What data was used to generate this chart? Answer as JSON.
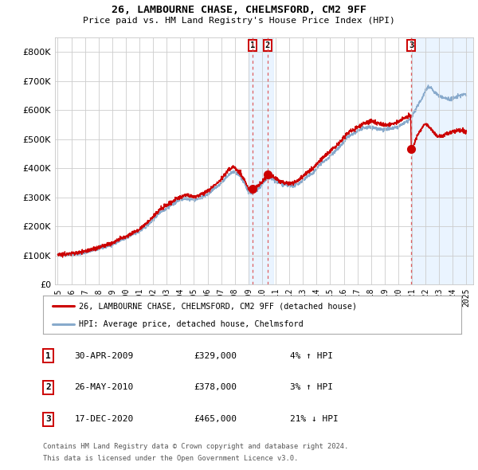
{
  "title1": "26, LAMBOURNE CHASE, CHELMSFORD, CM2 9FF",
  "title2": "Price paid vs. HM Land Registry's House Price Index (HPI)",
  "ylim": [
    0,
    850000
  ],
  "yticks": [
    0,
    100000,
    200000,
    300000,
    400000,
    500000,
    600000,
    700000,
    800000
  ],
  "ytick_labels": [
    "£0",
    "£100K",
    "£200K",
    "£300K",
    "£400K",
    "£500K",
    "£600K",
    "£700K",
    "£800K"
  ],
  "x_start_year": 1995,
  "x_end_year": 2025,
  "red_line_color": "#cc0000",
  "blue_line_color": "#88aacc",
  "grid_color": "#cccccc",
  "background_color": "#ffffff",
  "sale1_date": 2009.33,
  "sale1_price": 329000,
  "sale2_date": 2010.4,
  "sale2_price": 378000,
  "sale3_date": 2020.96,
  "sale3_price": 465000,
  "legend_red_label": "26, LAMBOURNE CHASE, CHELMSFORD, CM2 9FF (detached house)",
  "legend_blue_label": "HPI: Average price, detached house, Chelmsford",
  "table_rows": [
    {
      "num": "1",
      "date": "30-APR-2009",
      "price": "£329,000",
      "hpi": "4% ↑ HPI"
    },
    {
      "num": "2",
      "date": "26-MAY-2010",
      "price": "£378,000",
      "hpi": "3% ↑ HPI"
    },
    {
      "num": "3",
      "date": "17-DEC-2020",
      "price": "£465,000",
      "hpi": "21% ↓ HPI"
    }
  ],
  "footnote1": "Contains HM Land Registry data © Crown copyright and database right 2024.",
  "footnote2": "This data is licensed under the Open Government Licence v3.0.",
  "shade_color": "#ddeeff",
  "dashed_line_color": "#dd4444",
  "hpi_key_points": [
    [
      1995.0,
      102000
    ],
    [
      1995.5,
      101000
    ],
    [
      1996.0,
      104000
    ],
    [
      1996.5,
      105000
    ],
    [
      1997.0,
      110000
    ],
    [
      1997.5,
      116000
    ],
    [
      1998.0,
      122000
    ],
    [
      1998.5,
      130000
    ],
    [
      1999.0,
      138000
    ],
    [
      1999.5,
      148000
    ],
    [
      2000.0,
      158000
    ],
    [
      2000.5,
      172000
    ],
    [
      2001.0,
      183000
    ],
    [
      2001.5,
      200000
    ],
    [
      2002.0,
      222000
    ],
    [
      2002.5,
      248000
    ],
    [
      2003.0,
      262000
    ],
    [
      2003.5,
      278000
    ],
    [
      2004.0,
      292000
    ],
    [
      2004.5,
      296000
    ],
    [
      2005.0,
      292000
    ],
    [
      2005.5,
      298000
    ],
    [
      2006.0,
      310000
    ],
    [
      2006.5,
      330000
    ],
    [
      2007.0,
      348000
    ],
    [
      2007.5,
      375000
    ],
    [
      2007.9,
      388000
    ],
    [
      2008.3,
      375000
    ],
    [
      2008.7,
      348000
    ],
    [
      2009.0,
      318000
    ],
    [
      2009.3,
      315000
    ],
    [
      2009.6,
      325000
    ],
    [
      2009.9,
      338000
    ],
    [
      2010.2,
      355000
    ],
    [
      2010.5,
      368000
    ],
    [
      2010.8,
      362000
    ],
    [
      2011.0,
      355000
    ],
    [
      2011.3,
      348000
    ],
    [
      2011.7,
      342000
    ],
    [
      2012.0,
      338000
    ],
    [
      2012.3,
      340000
    ],
    [
      2012.7,
      348000
    ],
    [
      2013.0,
      358000
    ],
    [
      2013.3,
      370000
    ],
    [
      2013.7,
      382000
    ],
    [
      2014.0,
      398000
    ],
    [
      2014.3,
      415000
    ],
    [
      2014.7,
      428000
    ],
    [
      2015.0,
      442000
    ],
    [
      2015.3,
      458000
    ],
    [
      2015.7,
      472000
    ],
    [
      2016.0,
      490000
    ],
    [
      2016.3,
      508000
    ],
    [
      2016.7,
      518000
    ],
    [
      2017.0,
      528000
    ],
    [
      2017.3,
      535000
    ],
    [
      2017.7,
      540000
    ],
    [
      2018.0,
      542000
    ],
    [
      2018.3,
      538000
    ],
    [
      2018.7,
      535000
    ],
    [
      2019.0,
      533000
    ],
    [
      2019.3,
      535000
    ],
    [
      2019.7,
      538000
    ],
    [
      2020.0,
      542000
    ],
    [
      2020.3,
      552000
    ],
    [
      2020.7,
      562000
    ],
    [
      2021.0,
      578000
    ],
    [
      2021.3,
      605000
    ],
    [
      2021.7,
      638000
    ],
    [
      2022.0,
      668000
    ],
    [
      2022.2,
      682000
    ],
    [
      2022.4,
      678000
    ],
    [
      2022.6,
      665000
    ],
    [
      2022.9,
      652000
    ],
    [
      2023.2,
      645000
    ],
    [
      2023.5,
      640000
    ],
    [
      2023.8,
      638000
    ],
    [
      2024.1,
      642000
    ],
    [
      2024.5,
      650000
    ],
    [
      2024.8,
      655000
    ],
    [
      2025.0,
      652000
    ]
  ],
  "price_key_points": [
    [
      1995.0,
      105000
    ],
    [
      1995.5,
      103000
    ],
    [
      1996.0,
      107000
    ],
    [
      1996.5,
      109000
    ],
    [
      1997.0,
      114000
    ],
    [
      1997.5,
      120000
    ],
    [
      1998.0,
      126000
    ],
    [
      1998.5,
      135000
    ],
    [
      1999.0,
      143000
    ],
    [
      1999.5,
      154000
    ],
    [
      2000.0,
      164000
    ],
    [
      2000.5,
      178000
    ],
    [
      2001.0,
      190000
    ],
    [
      2001.5,
      210000
    ],
    [
      2002.0,
      232000
    ],
    [
      2002.5,
      258000
    ],
    [
      2003.0,
      272000
    ],
    [
      2003.5,
      288000
    ],
    [
      2004.0,
      302000
    ],
    [
      2004.5,
      307000
    ],
    [
      2005.0,
      302000
    ],
    [
      2005.5,
      308000
    ],
    [
      2006.0,
      320000
    ],
    [
      2006.5,
      342000
    ],
    [
      2007.0,
      362000
    ],
    [
      2007.5,
      392000
    ],
    [
      2007.9,
      406000
    ],
    [
      2008.3,
      390000
    ],
    [
      2008.7,
      360000
    ],
    [
      2009.0,
      328000
    ],
    [
      2009.33,
      329000
    ],
    [
      2009.6,
      335000
    ],
    [
      2009.9,
      348000
    ],
    [
      2010.2,
      365000
    ],
    [
      2010.4,
      378000
    ],
    [
      2010.5,
      378000
    ],
    [
      2010.8,
      372000
    ],
    [
      2011.0,
      365000
    ],
    [
      2011.3,
      355000
    ],
    [
      2011.7,
      350000
    ],
    [
      2012.0,
      348000
    ],
    [
      2012.3,
      352000
    ],
    [
      2012.7,
      360000
    ],
    [
      2013.0,
      372000
    ],
    [
      2013.3,
      385000
    ],
    [
      2013.7,
      398000
    ],
    [
      2014.0,
      412000
    ],
    [
      2014.3,
      430000
    ],
    [
      2014.7,
      445000
    ],
    [
      2015.0,
      458000
    ],
    [
      2015.3,
      472000
    ],
    [
      2015.7,
      488000
    ],
    [
      2016.0,
      505000
    ],
    [
      2016.3,
      522000
    ],
    [
      2016.7,
      532000
    ],
    [
      2017.0,
      542000
    ],
    [
      2017.3,
      550000
    ],
    [
      2017.7,
      558000
    ],
    [
      2018.0,
      562000
    ],
    [
      2018.3,
      558000
    ],
    [
      2018.7,
      552000
    ],
    [
      2019.0,
      548000
    ],
    [
      2019.3,
      550000
    ],
    [
      2019.7,
      555000
    ],
    [
      2020.0,
      560000
    ],
    [
      2020.3,
      568000
    ],
    [
      2020.7,
      578000
    ],
    [
      2020.9,
      582000
    ],
    [
      2020.96,
      465000
    ],
    [
      2021.05,
      468000
    ],
    [
      2021.2,
      490000
    ],
    [
      2021.4,
      512000
    ],
    [
      2021.7,
      538000
    ],
    [
      2022.0,
      555000
    ],
    [
      2022.2,
      548000
    ],
    [
      2022.4,
      535000
    ],
    [
      2022.7,
      518000
    ],
    [
      2022.9,
      510000
    ],
    [
      2023.2,
      512000
    ],
    [
      2023.5,
      518000
    ],
    [
      2023.8,
      522000
    ],
    [
      2024.1,
      528000
    ],
    [
      2024.5,
      530000
    ],
    [
      2024.8,
      528000
    ],
    [
      2025.0,
      525000
    ]
  ]
}
